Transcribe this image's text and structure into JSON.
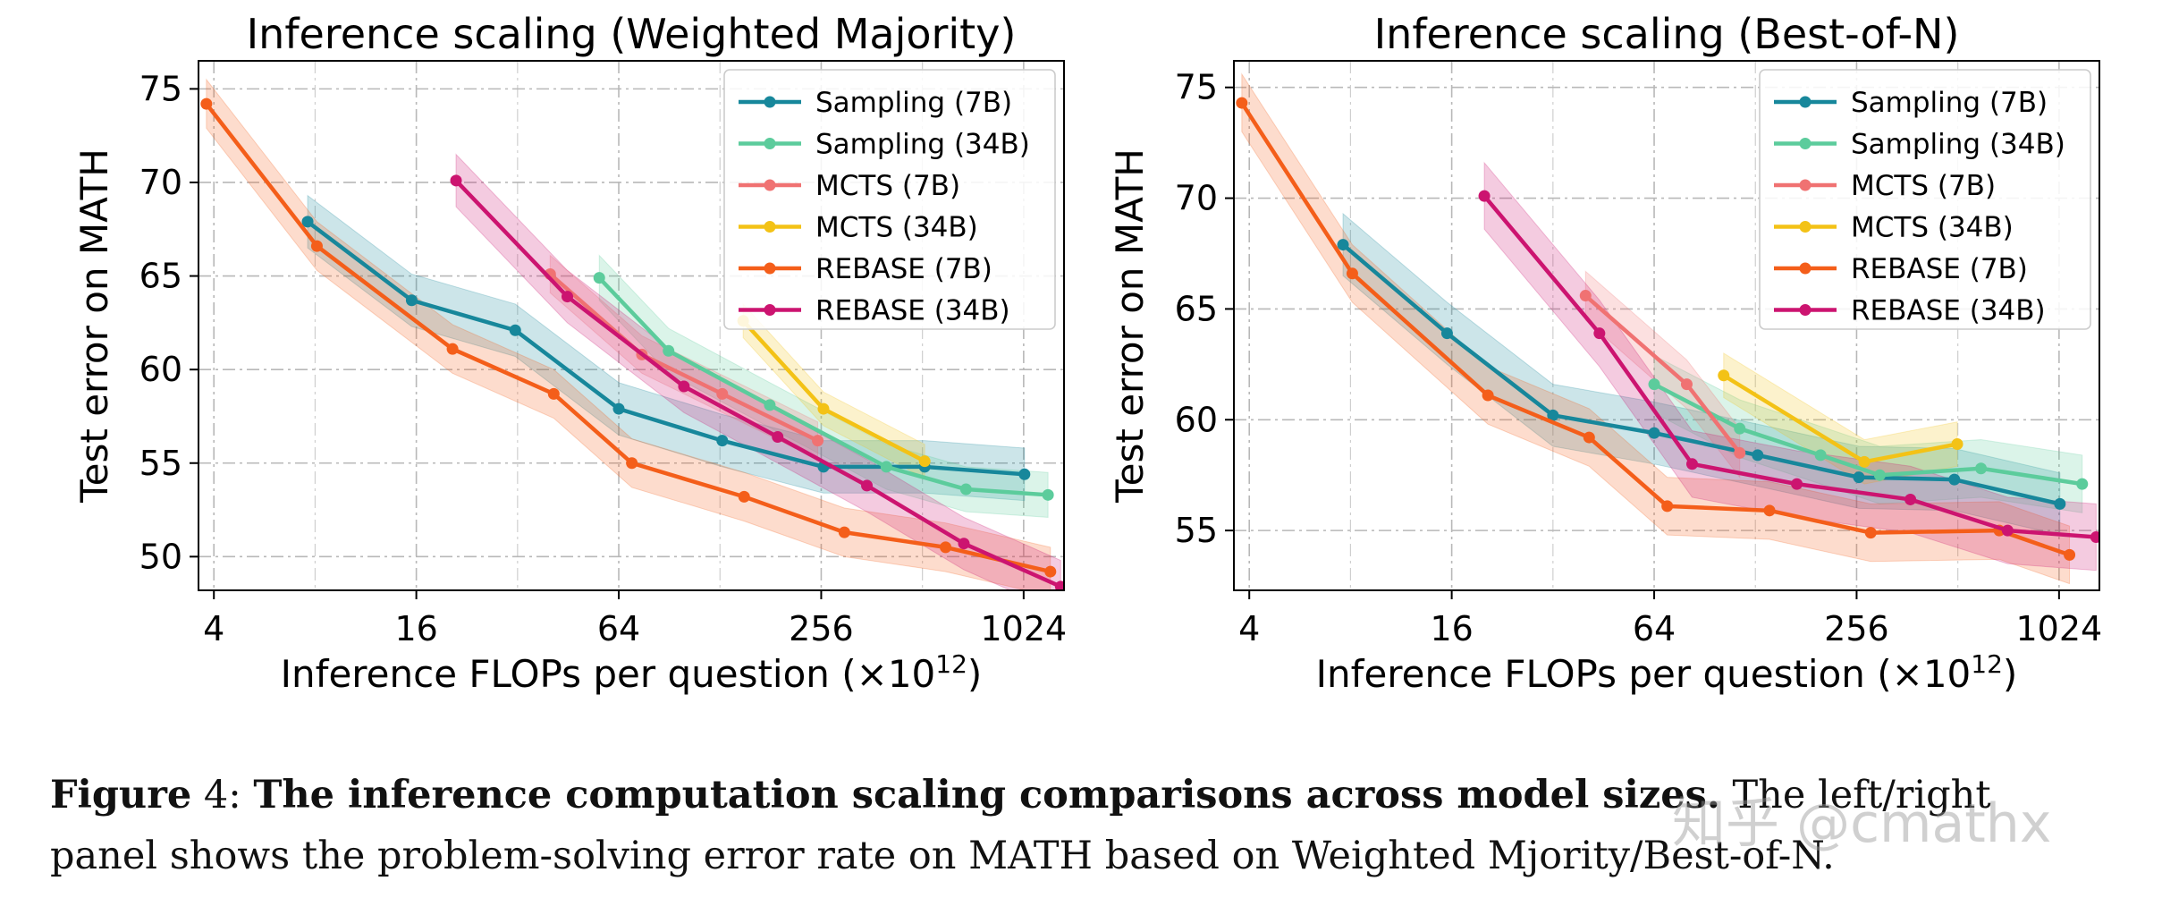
{
  "chart_data": [
    {
      "type": "line",
      "title": "Inference scaling (Weighted Majority)",
      "xlabel": "Inference FLOPs per question (×10",
      "xlabel_exp": "12",
      "xlabel_close": ")",
      "ylabel": "Test error on MATH",
      "xscale": "log2",
      "xlim": [
        3.6,
        1350
      ],
      "ylim": [
        48.2,
        76.5
      ],
      "xticks": [
        4,
        16,
        64,
        256,
        1024
      ],
      "xtick_labels": [
        "4",
        "16",
        "64",
        "256",
        "1024"
      ],
      "yticks": [
        50,
        55,
        60,
        65,
        70,
        75
      ],
      "ytick_labels": [
        "50",
        "55",
        "60",
        "65",
        "70",
        "75"
      ],
      "legend_position": "top-right",
      "grid": true,
      "series": [
        {
          "name": "Sampling (7B)",
          "color": "#17879b",
          "points": [
            [
              7.6,
              67.9
            ],
            [
              15.5,
              63.7
            ],
            [
              31.5,
              62.1
            ],
            [
              64,
              57.9
            ],
            [
              130,
              56.2
            ],
            [
              260,
              54.8
            ],
            [
              520,
              54.8
            ],
            [
              1030,
              54.4
            ]
          ],
          "band": 1.4
        },
        {
          "name": "Sampling (34B)",
          "color": "#5ccc9c",
          "points": [
            [
              56,
              64.9
            ],
            [
              90,
              61.0
            ],
            [
              180,
              58.1
            ],
            [
              400,
              54.8
            ],
            [
              690,
              53.6
            ],
            [
              1210,
              53.3
            ]
          ],
          "band": 1.2
        },
        {
          "name": "MCTS (7B)",
          "color": "#f07272",
          "points": [
            [
              40,
              65.1
            ],
            [
              75,
              60.8
            ],
            [
              130,
              58.7
            ],
            [
              250,
              56.2
            ]
          ],
          "band": 1.0
        },
        {
          "name": "MCTS (34B)",
          "color": "#f3c216",
          "points": [
            [
              150,
              62.6
            ],
            [
              260,
              57.9
            ],
            [
              520,
              55.1
            ]
          ],
          "band": 0.9
        },
        {
          "name": "REBASE (7B)",
          "color": "#f45e1a",
          "points": [
            [
              3.8,
              74.2
            ],
            [
              8.1,
              66.6
            ],
            [
              20.5,
              61.1
            ],
            [
              41,
              58.7
            ],
            [
              70,
              55.0
            ],
            [
              151,
              53.2
            ],
            [
              300,
              51.3
            ],
            [
              600,
              50.5
            ],
            [
              1230,
              49.2
            ]
          ],
          "band": 1.3
        },
        {
          "name": "REBASE (34B)",
          "color": "#cc1470",
          "points": [
            [
              21,
              70.1
            ],
            [
              45,
              63.9
            ],
            [
              100,
              59.1
            ],
            [
              190,
              56.4
            ],
            [
              350,
              53.8
            ],
            [
              680,
              50.7
            ],
            [
              1320,
              48.4
            ]
          ],
          "band": 1.4
        }
      ]
    },
    {
      "type": "line",
      "title": "Inference scaling (Best-of-N)",
      "xlabel": "Inference FLOPs per question (×10",
      "xlabel_exp": "12",
      "xlabel_close": ")",
      "ylabel": "Test error on MATH",
      "xscale": "log2",
      "xlim": [
        3.6,
        1350
      ],
      "ylim": [
        52.3,
        76.2
      ],
      "xticks": [
        4,
        16,
        64,
        256,
        1024
      ],
      "xtick_labels": [
        "4",
        "16",
        "64",
        "256",
        "1024"
      ],
      "yticks": [
        55,
        60,
        65,
        70,
        75
      ],
      "ytick_labels": [
        "55",
        "60",
        "65",
        "70",
        "75"
      ],
      "legend_position": "top-right",
      "grid": true,
      "series": [
        {
          "name": "Sampling (7B)",
          "color": "#17879b",
          "points": [
            [
              7.6,
              67.9
            ],
            [
              15.5,
              63.9
            ],
            [
              32,
              60.2
            ],
            [
              64,
              59.4
            ],
            [
              130,
              58.4
            ],
            [
              260,
              57.4
            ],
            [
              500,
              57.3
            ],
            [
              1030,
              56.2
            ]
          ],
          "band": 1.4
        },
        {
          "name": "Sampling (34B)",
          "color": "#5ccc9c",
          "points": [
            [
              64,
              61.6
            ],
            [
              115,
              59.6
            ],
            [
              200,
              58.4
            ],
            [
              300,
              57.5
            ],
            [
              600,
              57.8
            ],
            [
              1200,
              57.1
            ]
          ],
          "band": 1.3
        },
        {
          "name": "MCTS (7B)",
          "color": "#f07272",
          "points": [
            [
              40,
              65.6
            ],
            [
              80,
              61.6
            ],
            [
              115,
              58.5
            ]
          ],
          "band": 1.1
        },
        {
          "name": "MCTS (34B)",
          "color": "#f3c216",
          "points": [
            [
              103,
              62.0
            ],
            [
              270,
              58.1
            ],
            [
              510,
              58.9
            ]
          ],
          "band": 1.0
        },
        {
          "name": "REBASE (7B)",
          "color": "#f45e1a",
          "points": [
            [
              3.8,
              74.3
            ],
            [
              8.1,
              66.6
            ],
            [
              20.5,
              61.1
            ],
            [
              41,
              59.2
            ],
            [
              70,
              56.1
            ],
            [
              141,
              55.9
            ],
            [
              282,
              54.9
            ],
            [
              680,
              55.0
            ],
            [
              1100,
              53.9
            ]
          ],
          "band": 1.3
        },
        {
          "name": "REBASE (34B)",
          "color": "#cc1470",
          "points": [
            [
              20,
              70.1
            ],
            [
              44,
              63.9
            ],
            [
              83,
              58.0
            ],
            [
              170,
              57.1
            ],
            [
              370,
              56.4
            ],
            [
              720,
              55.0
            ],
            [
              1320,
              54.7
            ]
          ],
          "band": 1.5
        }
      ]
    }
  ],
  "caption": {
    "label": "Figure",
    "number": "4:",
    "bold_text": "The inference computation scaling comparisons across model sizes.",
    "text_line1": " The left/right",
    "text_line2": "panel shows the problem-solving error rate on MATH based on Weighted Mjority/Best-of-N."
  },
  "watermark": "知乎 @cmathx"
}
